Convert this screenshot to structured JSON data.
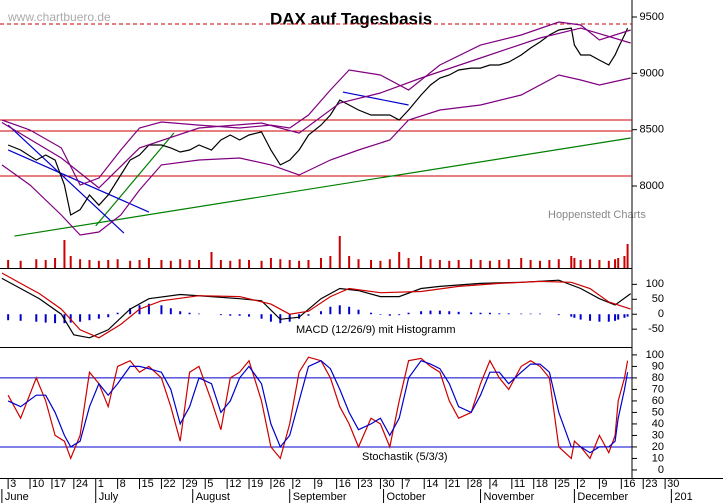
{
  "chart_data": [
    {
      "type": "line",
      "title": "DAX auf Tagesbasis",
      "watermark": "www.chartbuero.de",
      "source": "Hoppenstedt Charts",
      "xlim": [
        -2.6,
        228.5
      ],
      "ylim": [
        7299,
        9651
      ],
      "yticks": [
        8000,
        8500,
        9000,
        9500
      ],
      "x": [
        0,
        4,
        9,
        12,
        15,
        18,
        20,
        23,
        26,
        29,
        32,
        35,
        39,
        42,
        45,
        49,
        52,
        55,
        58,
        61,
        65,
        68,
        71,
        74,
        77,
        81,
        84,
        87,
        90,
        93,
        96,
        100,
        103,
        106,
        109,
        112,
        116,
        119,
        122,
        125,
        128,
        132,
        135,
        138,
        141,
        144,
        148,
        151,
        154,
        157,
        160,
        164,
        167,
        170,
        173,
        176,
        180,
        181,
        183,
        186,
        189,
        192,
        194,
        195,
        197,
        198
      ],
      "series": [
        {
          "color": "#000000",
          "values": [
            8364,
            8320,
            8230,
            8275,
            8230,
            8010,
            7743,
            7790,
            7920,
            7830,
            7920,
            8053,
            8230,
            8275,
            8364,
            8364,
            8338,
            8302,
            8320,
            8364,
            8320,
            8408,
            8453,
            8408,
            8453,
            8480,
            8320,
            8187,
            8230,
            8320,
            8453,
            8541,
            8630,
            8763,
            8719,
            8675,
            8630,
            8630,
            8630,
            8586,
            8675,
            8808,
            8897,
            8959,
            8985,
            9030,
            9047,
            9047,
            9074,
            9074,
            9100,
            9163,
            9225,
            9278,
            9340,
            9385,
            9402,
            9252,
            9163,
            9163,
            9118,
            9074,
            9163,
            9225,
            9340,
            9402
          ]
        },
        {
          "color": "#800080",
          "x": [
            -2,
            7,
            17,
            23,
            29,
            36,
            42,
            49,
            61,
            74,
            84,
            90,
            96,
            103,
            109,
            119,
            128,
            138,
            151,
            164,
            176,
            183,
            189,
            199
          ],
          "values": [
            8586,
            8497,
            8338,
            8009,
            8071,
            8320,
            8515,
            8568,
            8541,
            8515,
            8541,
            8515,
            8630,
            8852,
            9030,
            8985,
            8852,
            9074,
            9251,
            9340,
            9456,
            9429,
            9296,
            9385
          ]
        },
        {
          "color": "#800080",
          "x": [
            -2,
            17,
            29,
            42,
            61,
            81,
            93,
            106,
            119,
            132,
            151,
            170,
            183,
            199
          ],
          "values": [
            8564,
            8249,
            7983,
            8338,
            8515,
            8559,
            8470,
            8737,
            8826,
            8959,
            9136,
            9314,
            9402,
            9269
          ]
        },
        {
          "color": "#800080",
          "x": [
            -2,
            7,
            17,
            23,
            29,
            36,
            42,
            49,
            61,
            74,
            84,
            93,
            103,
            112,
            122,
            128,
            138,
            151,
            164,
            176,
            183,
            189,
            199
          ],
          "values": [
            8187,
            8009,
            7743,
            7565,
            7592,
            7743,
            7965,
            8187,
            8231,
            8249,
            8187,
            8098,
            8231,
            8320,
            8408,
            8586,
            8675,
            8719,
            8808,
            8985,
            8941,
            8897,
            8959
          ]
        }
      ],
      "hlines": [
        {
          "value": 8586,
          "color": "#cc0000"
        },
        {
          "value": 8488,
          "color": "#cc0000"
        },
        {
          "value": 8089,
          "color": "#cc0000"
        },
        {
          "value": 9438,
          "color": "#cc0000",
          "dashed": true
        }
      ],
      "trendlines": [
        {
          "x": [
            2,
            199
          ],
          "y": [
            7556,
            8426
          ],
          "color": "#008000"
        },
        {
          "x": [
            28,
            53
          ],
          "y": [
            7646,
            8471
          ],
          "color": "#008000"
        },
        {
          "x": [
            0,
            37
          ],
          "y": [
            8541,
            7583
          ],
          "color": "#0000cc"
        },
        {
          "x": [
            0,
            45
          ],
          "y": [
            8320,
            7769
          ],
          "color": "#0000cc"
        },
        {
          "x": [
            107,
            128
          ],
          "y": [
            8834,
            8719
          ],
          "color": "#0000cc"
        }
      ]
    },
    {
      "type": "bar",
      "color": "#cc0000",
      "ylim": [
        0,
        100
      ],
      "values": [
        20,
        18,
        22,
        20,
        25,
        70,
        30,
        22,
        20,
        18,
        20,
        22,
        18,
        20,
        25,
        20,
        18,
        22,
        20,
        20,
        40,
        20,
        18,
        22,
        20,
        18,
        25,
        22,
        20,
        18,
        20,
        25,
        30,
        80,
        30,
        22,
        20,
        18,
        22,
        40,
        25,
        30,
        22,
        20,
        18,
        20,
        22,
        20,
        18,
        20,
        22,
        25,
        20,
        18,
        20,
        22,
        30,
        25,
        20,
        22,
        20,
        18,
        22,
        25,
        30,
        60
      ]
    },
    {
      "type": "line",
      "label": "MACD (12/26/9) mit Histogramm",
      "ylim": [
        -103,
        148
      ],
      "yticks": [
        100,
        50,
        0,
        -50
      ],
      "histogram": {
        "color": "#0000cc",
        "values": [
          -20,
          -22,
          -25,
          -28,
          -30,
          -30,
          -28,
          -25,
          -20,
          -15,
          -10,
          5,
          20,
          30,
          35,
          30,
          20,
          10,
          5,
          2,
          0,
          -3,
          -5,
          -5,
          -8,
          -15,
          -25,
          -30,
          -25,
          -15,
          -5,
          10,
          25,
          30,
          25,
          15,
          5,
          -2,
          -5,
          -3,
          5,
          10,
          12,
          12,
          10,
          8,
          6,
          5,
          5,
          3,
          3,
          2,
          2,
          2,
          0,
          -3,
          -8,
          -12,
          -18,
          -22,
          -25,
          -25,
          -22,
          -18,
          -12,
          -8
        ]
      },
      "series": [
        {
          "color": "#000000",
          "x": [
            -2,
            4,
            10,
            17,
            21,
            26,
            32,
            39,
            45,
            55,
            65,
            74,
            81,
            87,
            93,
            100,
            106,
            112,
            119,
            125,
            132,
            138,
            151,
            164,
            176,
            183,
            189,
            194,
            199
          ],
          "values": [
            120,
            86,
            52,
            0,
            -69,
            -79,
            -52,
            17,
            52,
            66,
            59,
            52,
            45,
            -17,
            -10,
            52,
            86,
            79,
            59,
            59,
            86,
            93,
            103,
            107,
            114,
            86,
            52,
            31,
            69
          ]
        },
        {
          "color": "#cc0000",
          "x": [
            -2,
            4,
            10,
            17,
            23,
            29,
            36,
            42,
            49,
            61,
            74,
            84,
            90,
            96,
            103,
            109,
            119,
            132,
            144,
            157,
            170,
            180,
            186,
            192,
            199
          ],
          "values": [
            138,
            103,
            69,
            17,
            -52,
            -79,
            -34,
            17,
            45,
            62,
            59,
            34,
            0,
            10,
            59,
            86,
            72,
            76,
            93,
            103,
            110,
            107,
            86,
            41,
            17
          ]
        }
      ]
    },
    {
      "type": "line",
      "label": "Stochastik (5/3/3)",
      "ylim": [
        -7,
        106
      ],
      "yticks": [
        0,
        10,
        20,
        30,
        40,
        50,
        60,
        70,
        80,
        90,
        100
      ],
      "hlines": [
        {
          "value": 80,
          "color": "#0000cc"
        },
        {
          "value": 20,
          "color": "#0000cc"
        }
      ],
      "series": [
        {
          "color": "#cc0000",
          "values": [
            65,
            45,
            80,
            60,
            30,
            25,
            10,
            30,
            85,
            75,
            55,
            90,
            95,
            85,
            90,
            80,
            55,
            25,
            85,
            90,
            60,
            35,
            80,
            85,
            95,
            60,
            20,
            10,
            40,
            85,
            98,
            95,
            80,
            55,
            40,
            20,
            45,
            40,
            20,
            60,
            95,
            97,
            90,
            85,
            60,
            45,
            50,
            75,
            95,
            80,
            70,
            90,
            95,
            90,
            80,
            20,
            10,
            25,
            20,
            10,
            30,
            15,
            30,
            60,
            80,
            95
          ]
        },
        {
          "color": "#0000cc",
          "values": [
            60,
            55,
            65,
            65,
            50,
            30,
            20,
            25,
            55,
            75,
            65,
            75,
            90,
            90,
            88,
            85,
            70,
            40,
            55,
            80,
            75,
            50,
            60,
            80,
            90,
            75,
            40,
            20,
            30,
            60,
            90,
            95,
            88,
            70,
            50,
            35,
            40,
            45,
            30,
            45,
            80,
            95,
            92,
            88,
            75,
            55,
            50,
            65,
            85,
            85,
            75,
            85,
            92,
            92,
            85,
            50,
            20,
            20,
            20,
            15,
            20,
            20,
            25,
            45,
            70,
            85
          ]
        }
      ],
      "xticks": [
        {
          "value": 0,
          "label": "3"
        },
        {
          "value": 7,
          "label": "10"
        },
        {
          "value": 14,
          "label": "17"
        },
        {
          "value": 21,
          "label": "24"
        },
        {
          "value": 28,
          "label": "1"
        },
        {
          "value": 35,
          "label": "8"
        },
        {
          "value": 42,
          "label": "15"
        },
        {
          "value": 49,
          "label": "22"
        },
        {
          "value": 56,
          "label": "29"
        },
        {
          "value": 63,
          "label": "5"
        },
        {
          "value": 70,
          "label": "12"
        },
        {
          "value": 77,
          "label": "19"
        },
        {
          "value": 84,
          "label": "26"
        },
        {
          "value": 91,
          "label": "2"
        },
        {
          "value": 98,
          "label": "9"
        },
        {
          "value": 105,
          "label": "16"
        },
        {
          "value": 112,
          "label": "23"
        },
        {
          "value": 119,
          "label": "30"
        },
        {
          "value": 126,
          "label": "7"
        },
        {
          "value": 133,
          "label": "14"
        },
        {
          "value": 140,
          "label": "21"
        },
        {
          "value": 147,
          "label": "28"
        },
        {
          "value": 154,
          "label": "4"
        },
        {
          "value": 161,
          "label": "11"
        },
        {
          "value": 168,
          "label": "18"
        },
        {
          "value": 175,
          "label": "25"
        },
        {
          "value": 182,
          "label": "2"
        },
        {
          "value": 189,
          "label": "9"
        },
        {
          "value": 196,
          "label": "16"
        },
        {
          "value": 203,
          "label": "23"
        },
        {
          "value": 210,
          "label": "30"
        }
      ],
      "months": [
        {
          "value": -2,
          "label": "June"
        },
        {
          "value": 28,
          "label": "July"
        },
        {
          "value": 59,
          "label": "August"
        },
        {
          "value": 90,
          "label": "September"
        },
        {
          "value": 120,
          "label": "October"
        },
        {
          "value": 151,
          "label": "November"
        },
        {
          "value": 181,
          "label": "December"
        },
        {
          "value": 212,
          "label": "201"
        }
      ]
    }
  ]
}
